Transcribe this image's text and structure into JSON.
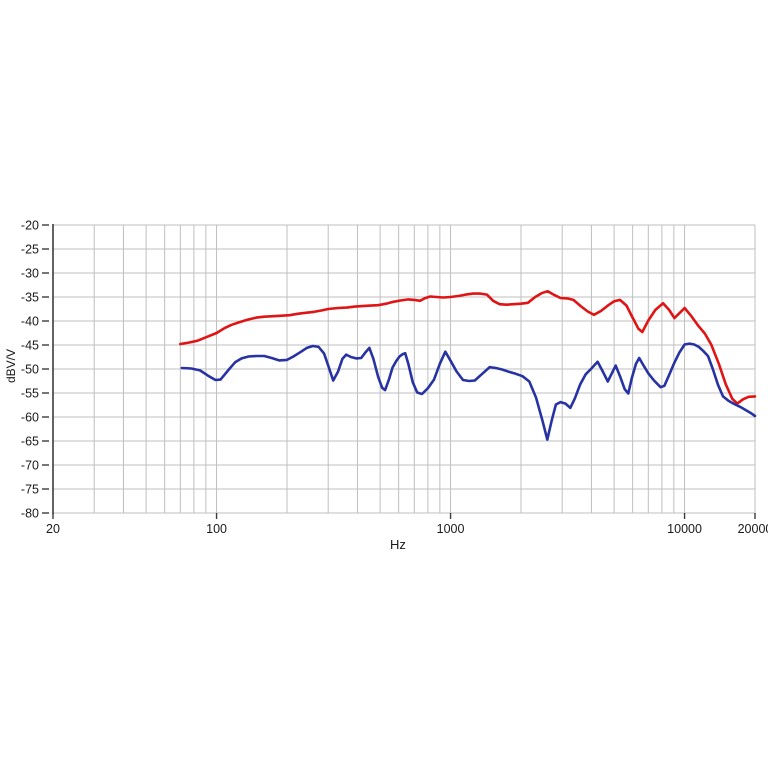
{
  "chart_data": {
    "type": "line",
    "title": "",
    "grid": true,
    "legend": false,
    "background": "#ffffff",
    "gridline_color": "#bfbfbf",
    "axis_color": "#3c3c3c",
    "text_color": "#1a1a1a",
    "x_axis": {
      "label": "Hz",
      "scale": "log",
      "min": 20,
      "max": 20000,
      "tick_values": [
        20,
        100,
        1000,
        10000,
        20000
      ],
      "tick_labels": [
        "20",
        "100",
        "1000",
        "10000",
        "20000"
      ]
    },
    "y_axis": {
      "label": "dBV/V",
      "scale": "linear",
      "min": -80,
      "max": -20,
      "tick_values": [
        -20,
        -25,
        -30,
        -35,
        -40,
        -45,
        -50,
        -55,
        -60,
        -65,
        -70,
        -75,
        -80
      ],
      "tick_labels": [
        "-20",
        "-25",
        "-30",
        "-35",
        "-40",
        "-45",
        "-50",
        "-55",
        "-60",
        "-65",
        "-70",
        "-75",
        "-80"
      ]
    },
    "series": [
      {
        "name": "red-trace",
        "color": "#e01414",
        "points": [
          [
            70,
            -44.8
          ],
          [
            76,
            -44.5
          ],
          [
            83,
            -44.1
          ],
          [
            90,
            -43.4
          ],
          [
            100,
            -42.5
          ],
          [
            108,
            -41.5
          ],
          [
            116,
            -40.8
          ],
          [
            126,
            -40.2
          ],
          [
            136,
            -39.7
          ],
          [
            148,
            -39.3
          ],
          [
            160,
            -39.1
          ],
          [
            175,
            -39.0
          ],
          [
            190,
            -38.9
          ],
          [
            205,
            -38.8
          ],
          [
            222,
            -38.5
          ],
          [
            240,
            -38.3
          ],
          [
            260,
            -38.1
          ],
          [
            282,
            -37.8
          ],
          [
            300,
            -37.5
          ],
          [
            330,
            -37.3
          ],
          [
            360,
            -37.2
          ],
          [
            390,
            -37.0
          ],
          [
            420,
            -36.9
          ],
          [
            455,
            -36.8
          ],
          [
            490,
            -36.7
          ],
          [
            530,
            -36.4
          ],
          [
            570,
            -36.0
          ],
          [
            615,
            -35.7
          ],
          [
            660,
            -35.5
          ],
          [
            700,
            -35.6
          ],
          [
            740,
            -35.8
          ],
          [
            780,
            -35.2
          ],
          [
            820,
            -34.9
          ],
          [
            870,
            -35.0
          ],
          [
            930,
            -35.1
          ],
          [
            1000,
            -35.0
          ],
          [
            1080,
            -34.8
          ],
          [
            1160,
            -34.5
          ],
          [
            1250,
            -34.3
          ],
          [
            1340,
            -34.3
          ],
          [
            1430,
            -34.5
          ],
          [
            1520,
            -35.8
          ],
          [
            1620,
            -36.5
          ],
          [
            1740,
            -36.6
          ],
          [
            1860,
            -36.5
          ],
          [
            2000,
            -36.4
          ],
          [
            2140,
            -36.2
          ],
          [
            2300,
            -35.0
          ],
          [
            2450,
            -34.2
          ],
          [
            2600,
            -33.8
          ],
          [
            2780,
            -34.6
          ],
          [
            2950,
            -35.2
          ],
          [
            3150,
            -35.3
          ],
          [
            3350,
            -35.6
          ],
          [
            3600,
            -36.9
          ],
          [
            3850,
            -38.0
          ],
          [
            4100,
            -38.7
          ],
          [
            4400,
            -37.9
          ],
          [
            4700,
            -36.8
          ],
          [
            5000,
            -35.9
          ],
          [
            5300,
            -35.6
          ],
          [
            5650,
            -36.8
          ],
          [
            6000,
            -39.3
          ],
          [
            6350,
            -41.6
          ],
          [
            6600,
            -42.3
          ],
          [
            7000,
            -39.9
          ],
          [
            7500,
            -37.7
          ],
          [
            8100,
            -36.3
          ],
          [
            8600,
            -37.7
          ],
          [
            9050,
            -39.4
          ],
          [
            9500,
            -38.4
          ],
          [
            10000,
            -37.3
          ],
          [
            10700,
            -39.0
          ],
          [
            11400,
            -40.9
          ],
          [
            12200,
            -42.6
          ],
          [
            13000,
            -44.9
          ],
          [
            14000,
            -48.9
          ],
          [
            15000,
            -53.2
          ],
          [
            16000,
            -56.2
          ],
          [
            16800,
            -57.2
          ],
          [
            17800,
            -56.3
          ],
          [
            18800,
            -55.8
          ],
          [
            20000,
            -55.7
          ]
        ]
      },
      {
        "name": "blue-trace",
        "color": "#2733a2",
        "points": [
          [
            71,
            -49.8
          ],
          [
            78,
            -49.9
          ],
          [
            85,
            -50.3
          ],
          [
            92,
            -51.4
          ],
          [
            99,
            -52.3
          ],
          [
            104,
            -52.2
          ],
          [
            112,
            -50.3
          ],
          [
            120,
            -48.6
          ],
          [
            128,
            -47.8
          ],
          [
            137,
            -47.4
          ],
          [
            148,
            -47.3
          ],
          [
            160,
            -47.3
          ],
          [
            172,
            -47.7
          ],
          [
            185,
            -48.2
          ],
          [
            200,
            -48.1
          ],
          [
            213,
            -47.4
          ],
          [
            228,
            -46.5
          ],
          [
            243,
            -45.6
          ],
          [
            258,
            -45.2
          ],
          [
            273,
            -45.4
          ],
          [
            288,
            -46.8
          ],
          [
            303,
            -49.9
          ],
          [
            315,
            -52.4
          ],
          [
            330,
            -50.6
          ],
          [
            345,
            -47.9
          ],
          [
            358,
            -47.0
          ],
          [
            375,
            -47.5
          ],
          [
            395,
            -47.8
          ],
          [
            415,
            -47.7
          ],
          [
            435,
            -46.4
          ],
          [
            450,
            -45.6
          ],
          [
            468,
            -47.9
          ],
          [
            490,
            -51.6
          ],
          [
            510,
            -53.9
          ],
          [
            525,
            -54.4
          ],
          [
            545,
            -52.2
          ],
          [
            565,
            -49.7
          ],
          [
            585,
            -48.4
          ],
          [
            605,
            -47.4
          ],
          [
            625,
            -46.9
          ],
          [
            640,
            -46.7
          ],
          [
            660,
            -48.9
          ],
          [
            690,
            -52.8
          ],
          [
            720,
            -54.9
          ],
          [
            755,
            -55.2
          ],
          [
            800,
            -54.0
          ],
          [
            850,
            -52.2
          ],
          [
            900,
            -48.9
          ],
          [
            950,
            -46.4
          ],
          [
            1000,
            -48.3
          ],
          [
            1060,
            -50.5
          ],
          [
            1130,
            -52.3
          ],
          [
            1200,
            -52.5
          ],
          [
            1270,
            -52.4
          ],
          [
            1350,
            -51.2
          ],
          [
            1470,
            -49.6
          ],
          [
            1560,
            -49.8
          ],
          [
            1660,
            -50.1
          ],
          [
            1780,
            -50.6
          ],
          [
            1900,
            -51.0
          ],
          [
            2030,
            -51.5
          ],
          [
            2170,
            -52.6
          ],
          [
            2320,
            -56.0
          ],
          [
            2470,
            -60.8
          ],
          [
            2590,
            -64.7
          ],
          [
            2700,
            -60.9
          ],
          [
            2820,
            -57.4
          ],
          [
            2950,
            -56.9
          ],
          [
            3100,
            -57.2
          ],
          [
            3250,
            -58.1
          ],
          [
            3400,
            -56.1
          ],
          [
            3580,
            -53.2
          ],
          [
            3780,
            -51.1
          ],
          [
            4000,
            -49.9
          ],
          [
            4250,
            -48.5
          ],
          [
            4480,
            -50.6
          ],
          [
            4700,
            -52.6
          ],
          [
            4900,
            -50.8
          ],
          [
            5080,
            -49.3
          ],
          [
            5300,
            -51.5
          ],
          [
            5550,
            -54.2
          ],
          [
            5750,
            -55.1
          ],
          [
            5950,
            -51.9
          ],
          [
            6200,
            -48.9
          ],
          [
            6400,
            -47.7
          ],
          [
            6700,
            -49.4
          ],
          [
            7000,
            -50.9
          ],
          [
            7400,
            -52.4
          ],
          [
            7900,
            -53.8
          ],
          [
            8200,
            -53.5
          ],
          [
            8600,
            -51.2
          ],
          [
            9000,
            -48.9
          ],
          [
            9500,
            -46.6
          ],
          [
            10000,
            -44.9
          ],
          [
            10500,
            -44.7
          ],
          [
            11000,
            -44.9
          ],
          [
            11500,
            -45.4
          ],
          [
            12000,
            -46.2
          ],
          [
            12600,
            -47.3
          ],
          [
            13200,
            -50.0
          ],
          [
            13900,
            -53.3
          ],
          [
            14600,
            -55.7
          ],
          [
            15400,
            -56.6
          ],
          [
            16300,
            -57.3
          ],
          [
            17300,
            -57.9
          ],
          [
            18300,
            -58.6
          ],
          [
            19100,
            -59.1
          ],
          [
            20000,
            -59.8
          ]
        ]
      }
    ]
  }
}
